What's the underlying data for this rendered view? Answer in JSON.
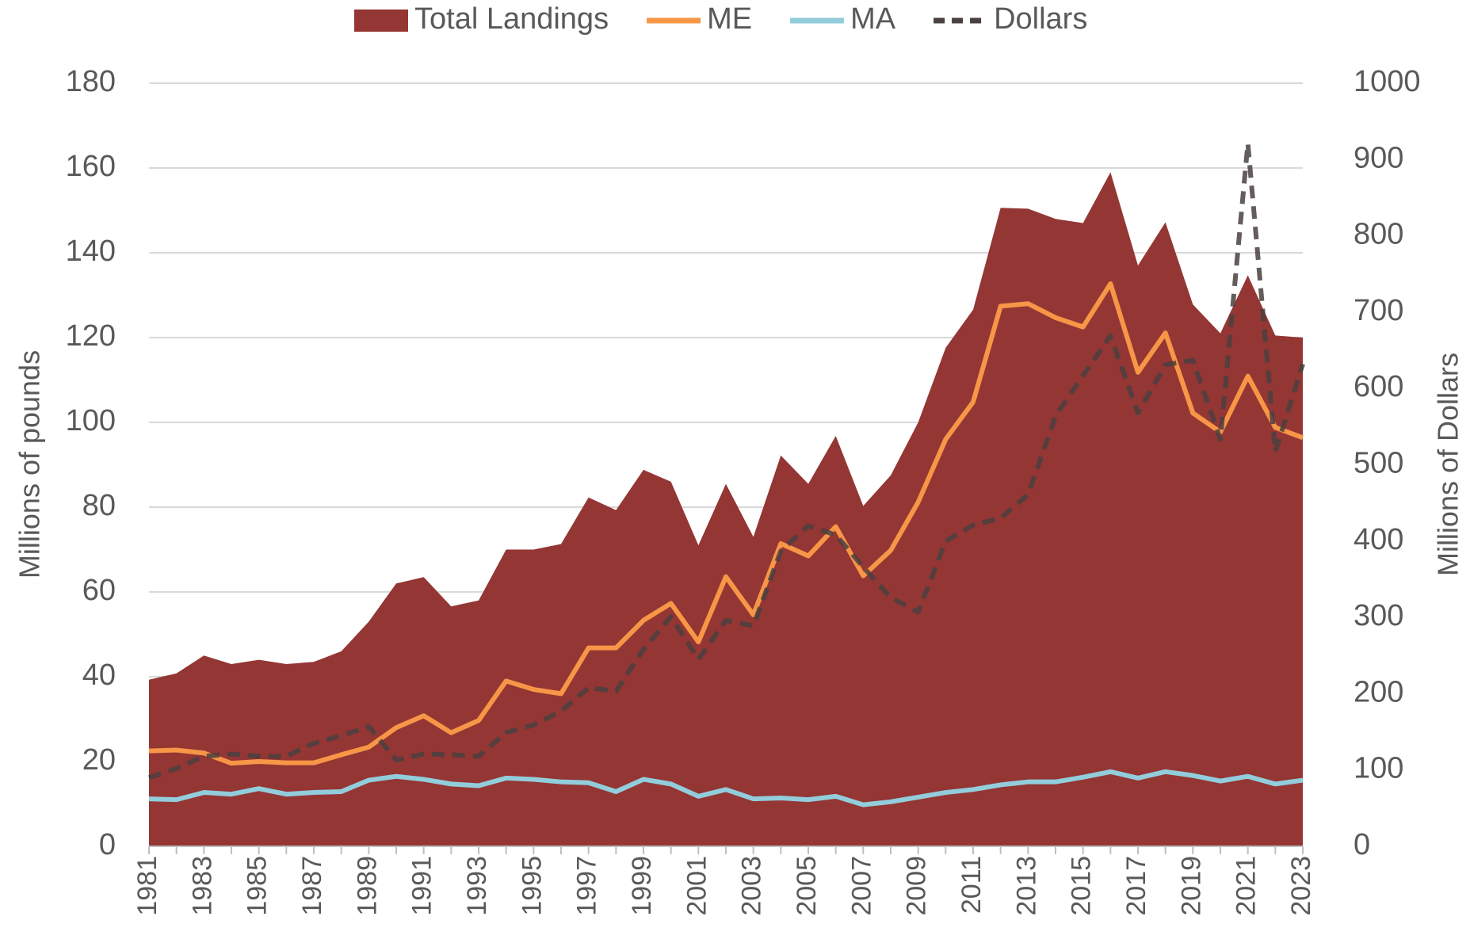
{
  "chart_data": {
    "type": "line",
    "y_label": "Millions of pounds",
    "y2_label": "Millions of Dollars",
    "categories": [
      "1981",
      null,
      "1983",
      null,
      "1985",
      null,
      "1987",
      null,
      "1989",
      null,
      "1991",
      null,
      "1993",
      null,
      "1995",
      null,
      "1997",
      null,
      "1999",
      null,
      "2001",
      null,
      "2003",
      null,
      "2005",
      null,
      "2007",
      null,
      "2009",
      null,
      "2011",
      null,
      "2013",
      null,
      "2015",
      null,
      "2017",
      null,
      "2019",
      null,
      "2021",
      null,
      "2023"
    ],
    "series": [
      {
        "name": "Total Landings",
        "type": "area",
        "color": "#943634",
        "values": [
          39.3,
          40.8,
          45,
          43,
          44,
          43,
          43.5,
          46,
          53,
          62,
          63.5,
          56.6,
          58,
          70,
          70,
          71.3,
          82.3,
          79.3,
          88.8,
          86,
          71,
          85.5,
          73,
          92.2,
          85.5,
          96.8,
          80.3,
          87.5,
          100,
          117.6,
          126.6,
          150.6,
          150.4,
          148,
          147,
          159,
          137,
          147.2,
          127.8,
          121,
          134.7,
          120.5,
          120
        ]
      },
      {
        "name": "ME",
        "type": "line",
        "color": "#f79646",
        "values": [
          22.5,
          22.7,
          22,
          19.6,
          20,
          19.7,
          19.7,
          21.6,
          23.4,
          28,
          30.8,
          26.8,
          29.7,
          39,
          37,
          36,
          46.8,
          46.8,
          53.3,
          57.3,
          48.2,
          63.6,
          54.6,
          71.4,
          68.5,
          75.4,
          63.8,
          69.8,
          81.2,
          96,
          104.8,
          127.4,
          128,
          124.7,
          122.5,
          132.7,
          111.8,
          121.1,
          102.2,
          97.7,
          110.9,
          98.8,
          96.4
        ]
      },
      {
        "name": "MA",
        "type": "line",
        "color": "#92cddc",
        "values": [
          11.2,
          11,
          12.7,
          12.3,
          13.6,
          12.3,
          12.7,
          12.9,
          15.6,
          16.5,
          15.8,
          14.7,
          14.3,
          16.1,
          15.8,
          15.2,
          15,
          12.9,
          15.8,
          14.7,
          11.8,
          13.4,
          11.2,
          11.4,
          11,
          11.8,
          9.8,
          10.5,
          11.6,
          12.7,
          13.4,
          14.5,
          15.2,
          15.2,
          16.3,
          17.6,
          16.1,
          17.6,
          16.7,
          15.4,
          16.5,
          14.7,
          15.6
        ]
      },
      {
        "name": "Dollars",
        "type": "line",
        "dash": true,
        "axis": "y2",
        "color": "#4a4040",
        "values": [
          90,
          102,
          118,
          121,
          118,
          118,
          135,
          145,
          157,
          113,
          121,
          120,
          118,
          149,
          159,
          177,
          208,
          203,
          258,
          301,
          245,
          296,
          289,
          387,
          420,
          408,
          366,
          326,
          307,
          400,
          421,
          430,
          461,
          564,
          617,
          669,
          568,
          631,
          637,
          533,
          921,
          517,
          632
        ]
      }
    ],
    "ylim": [
      0,
      180
    ],
    "yticks": [
      0,
      20,
      40,
      60,
      80,
      100,
      120,
      140,
      160,
      180
    ],
    "y2lim": [
      0,
      1000
    ],
    "y2ticks": [
      0,
      100,
      200,
      300,
      400,
      500,
      600,
      700,
      800,
      900,
      1000
    ],
    "grid": true,
    "legend": "top"
  }
}
